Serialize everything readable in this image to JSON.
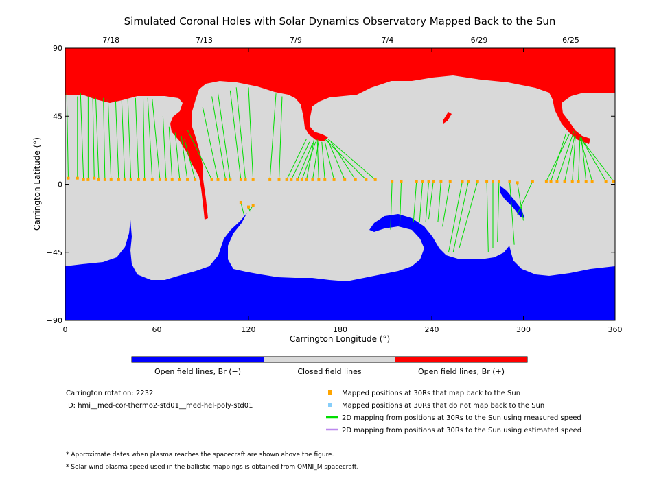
{
  "chart_data": {
    "type": "map",
    "title": "Simulated Coronal Holes with Solar Dynamics Observatory Mapped Back to the Sun",
    "xlabel": "Carrington Longitude (°)",
    "ylabel": "Carrington Latitude (°)",
    "xlim": [
      0,
      360
    ],
    "ylim": [
      -90,
      90
    ],
    "x_ticks": [
      0,
      60,
      120,
      180,
      240,
      300,
      360
    ],
    "y_ticks": [
      -90,
      -45,
      0,
      45,
      90
    ],
    "top_axis": {
      "labels": [
        "7/18",
        "7/13",
        "7/9",
        "7/4",
        "6/29",
        "6/25"
      ],
      "longitudes": [
        30,
        91,
        151,
        211,
        271,
        331
      ]
    },
    "colors": {
      "open_negative": "#0000ff",
      "closed": "#d9d9d9",
      "open_positive": "#ff0000",
      "mapped_point": "#ffa500",
      "unmapped_point": "#87cefa",
      "measured_line": "#00dd00",
      "estimated_line": "#bb88ee"
    },
    "colorbar_labels": [
      "Open field lines, Br (−)",
      "Closed field lines",
      "Open field lines, Br (+)"
    ],
    "mapping_lines": [
      [
        2,
        4,
        1,
        60
      ],
      [
        8,
        4,
        8,
        58
      ],
      [
        12,
        3,
        10,
        60
      ],
      [
        15,
        3,
        15,
        58
      ],
      [
        19,
        4,
        18,
        58
      ],
      [
        22,
        3,
        20,
        57
      ],
      [
        26,
        3,
        25,
        57
      ],
      [
        30,
        3,
        28,
        56
      ],
      [
        35,
        3,
        33,
        55
      ],
      [
        39,
        3,
        37,
        55
      ],
      [
        43,
        3,
        41,
        56
      ],
      [
        48,
        3,
        46,
        57
      ],
      [
        52,
        3,
        51,
        57
      ],
      [
        57,
        3,
        54,
        57
      ],
      [
        62,
        3,
        57,
        56
      ],
      [
        66,
        3,
        64,
        45
      ],
      [
        70,
        3,
        68,
        38
      ],
      [
        75,
        3,
        72,
        34
      ],
      [
        80,
        3,
        76,
        32
      ],
      [
        85,
        3,
        78,
        30
      ],
      [
        96,
        3,
        80,
        36
      ],
      [
        100,
        3,
        90,
        51
      ],
      [
        105,
        3,
        96,
        58
      ],
      [
        108,
        3,
        100,
        60
      ],
      [
        115,
        3,
        108,
        62
      ],
      [
        118,
        3,
        112,
        64
      ],
      [
        123,
        3,
        120,
        64
      ],
      [
        134,
        3,
        138,
        60
      ],
      [
        140,
        3,
        142,
        58
      ],
      [
        145,
        3,
        158,
        30
      ],
      [
        148,
        3,
        160,
        28
      ],
      [
        152,
        3,
        162,
        27
      ],
      [
        155,
        3,
        164,
        28
      ],
      [
        158,
        3,
        163,
        30
      ],
      [
        162,
        3,
        166,
        29
      ],
      [
        166,
        3,
        165,
        30
      ],
      [
        170,
        3,
        168,
        28
      ],
      [
        176,
        3,
        170,
        28
      ],
      [
        183,
        3,
        172,
        29
      ],
      [
        190,
        3,
        174,
        28
      ],
      [
        197,
        3,
        170,
        30
      ],
      [
        203,
        3,
        172,
        30
      ],
      [
        115,
        -12,
        117,
        -20
      ],
      [
        120,
        -15,
        121,
        -18
      ],
      [
        123,
        -14,
        121,
        -17
      ],
      [
        214,
        2,
        213,
        -30
      ],
      [
        220,
        2,
        219,
        -28
      ],
      [
        230,
        2,
        228,
        -25
      ],
      [
        234,
        2,
        232,
        -25
      ],
      [
        238,
        2,
        236,
        -25
      ],
      [
        241,
        2,
        238,
        -23
      ],
      [
        246,
        2,
        244,
        -25
      ],
      [
        252,
        2,
        247,
        -28
      ],
      [
        260,
        2,
        251,
        -45
      ],
      [
        264,
        2,
        254,
        -45
      ],
      [
        270,
        2,
        258,
        -42
      ],
      [
        276,
        2,
        277,
        -45
      ],
      [
        280,
        2,
        280,
        -42
      ],
      [
        284,
        2,
        283,
        -38
      ],
      [
        291,
        2,
        294,
        -40
      ],
      [
        296,
        1,
        300,
        -24
      ],
      [
        306,
        2,
        296,
        -20
      ],
      [
        315,
        2,
        330,
        33
      ],
      [
        318,
        2,
        328,
        34
      ],
      [
        322,
        2,
        333,
        35
      ],
      [
        327,
        2,
        334,
        34
      ],
      [
        332,
        2,
        334,
        32
      ],
      [
        336,
        2,
        337,
        30
      ],
      [
        341,
        2,
        338,
        31
      ],
      [
        345,
        2,
        337,
        31
      ],
      [
        354,
        2,
        338,
        30
      ],
      [
        359,
        2,
        337,
        31
      ]
    ],
    "legend": [
      {
        "marker": "square",
        "color": "#ffa500",
        "text": "Mapped positions at 30Rs that map back to the Sun"
      },
      {
        "marker": "square",
        "color": "#87cefa",
        "text": "Mapped positions at 30Rs that do not map back to the Sun"
      },
      {
        "marker": "line",
        "color": "#00dd00",
        "text": "2D mapping from positions at 30Rs to the Sun using measured speed"
      },
      {
        "marker": "line",
        "color": "#bb88ee",
        "text": "2D mapping from positions at 30Rs to the Sun using estimated speed"
      }
    ]
  },
  "info": {
    "rotation": "Carrington rotation: 2232",
    "id": "ID: hmi__med-cor-thermo2-std01__med-hel-poly-std01"
  },
  "notes": [
    "* Approximate dates when plasma reaches the spacecraft are shown above the figure.",
    "* Solar wind plasma speed used in the ballistic mappings is obtained from OMNI_M spacecraft."
  ]
}
